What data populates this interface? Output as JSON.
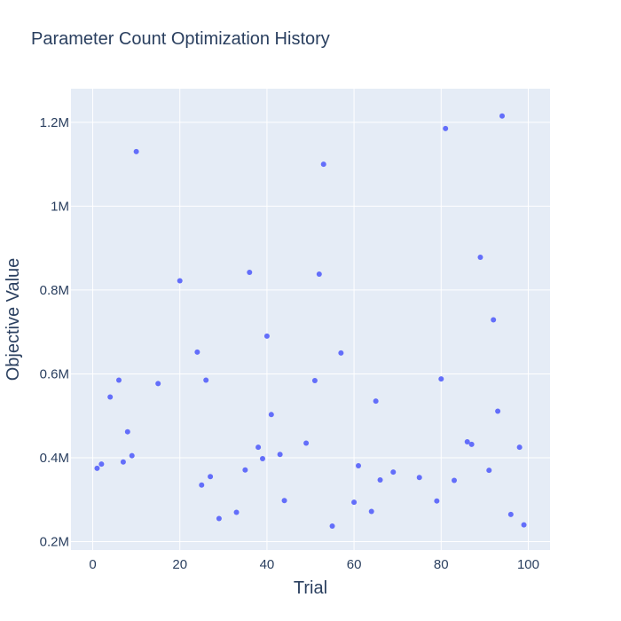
{
  "chart_data": {
    "type": "scatter",
    "title": "Parameter Count Optimization History",
    "xlabel": "Trial",
    "ylabel": "Objective Value",
    "xlim": [
      -5,
      105
    ],
    "ylim": [
      180000,
      1280000
    ],
    "x_ticks": [
      0,
      20,
      40,
      60,
      80,
      100
    ],
    "x_tick_labels": [
      "0",
      "20",
      "40",
      "60",
      "80",
      "100"
    ],
    "y_ticks": [
      200000,
      400000,
      600000,
      800000,
      1000000,
      1200000
    ],
    "y_tick_labels": [
      "0.2M",
      "0.4M",
      "0.6M",
      "0.8M",
      "1M",
      "1.2M"
    ],
    "grid": true,
    "legend": "none",
    "colors": {
      "marker": "#636efa",
      "plot_bg": "#e5ecf6",
      "grid": "#ffffff",
      "text": "#2a3f5f"
    },
    "series": [
      {
        "x": [
          1,
          2,
          4,
          6,
          7,
          8,
          9,
          10,
          15,
          20,
          24,
          25,
          26,
          27,
          29,
          33,
          35,
          36,
          38,
          39,
          40,
          41,
          43,
          44,
          49,
          51,
          52,
          53,
          55,
          57,
          60,
          61,
          64,
          65,
          66,
          69,
          75,
          79,
          80,
          81,
          83,
          86,
          87,
          89,
          91,
          92,
          93,
          94,
          96,
          98,
          99
        ],
        "y": [
          375000,
          385000,
          545000,
          585000,
          390000,
          462000,
          405000,
          1130000,
          577000,
          822000,
          652000,
          335000,
          585000,
          355000,
          255000,
          270000,
          371000,
          842000,
          425000,
          398000,
          690000,
          503000,
          408000,
          298000,
          435000,
          584000,
          838000,
          1100000,
          237000,
          650000,
          294000,
          381000,
          272000,
          535000,
          347000,
          366000,
          353000,
          297000,
          588000,
          1185000,
          346000,
          438000,
          432000,
          878000,
          370000,
          729000,
          511000,
          1215000,
          265000,
          425000,
          240000
        ]
      }
    ]
  }
}
